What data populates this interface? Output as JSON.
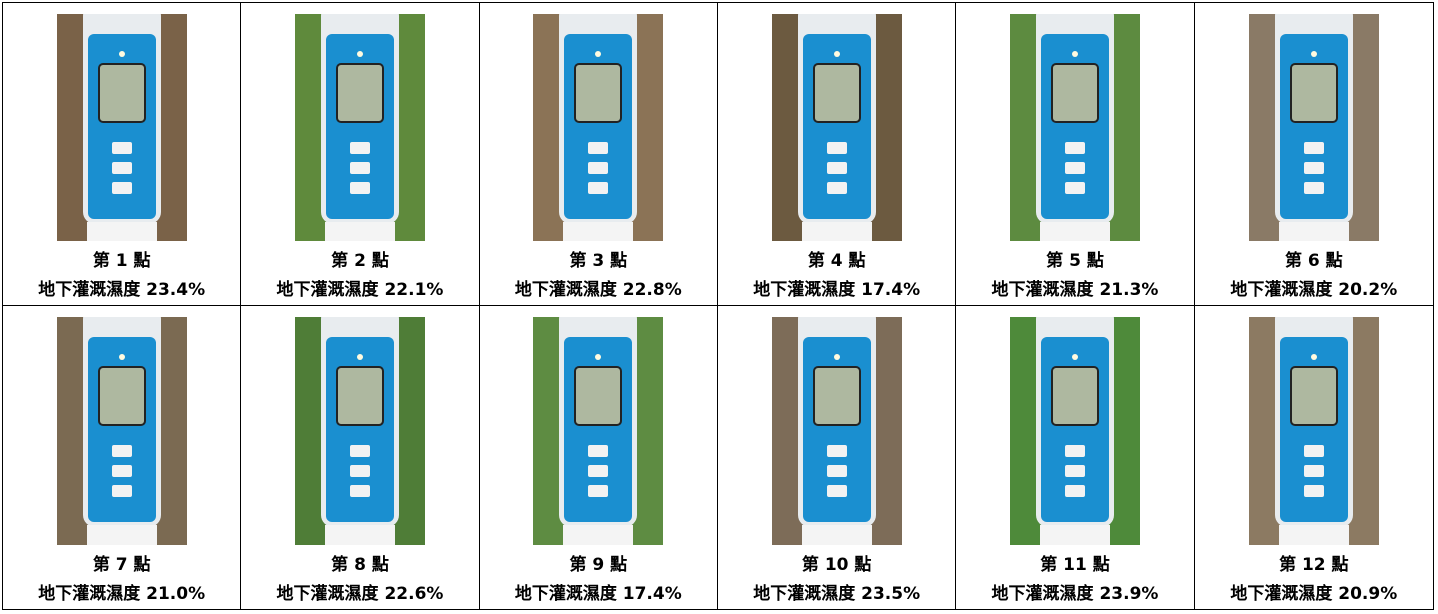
{
  "cells": [
    {
      "label": "第 1 點",
      "caption": "地下灌溉濕度 23.4%"
    },
    {
      "label": "第 2 點",
      "caption": "地下灌溉濕度 22.1%"
    },
    {
      "label": "第 3 點",
      "caption": "地下灌溉濕度 22.8%"
    },
    {
      "label": "第 4 點",
      "caption": "地下灌溉濕度 17.4%"
    },
    {
      "label": "第 5 點",
      "caption": "地下灌溉濕度 21.3%"
    },
    {
      "label": "第 6 點",
      "caption": "地下灌溉濕度 20.2%"
    },
    {
      "label": "第 7 點",
      "caption": "地下灌溉濕度 21.0%"
    },
    {
      "label": "第 8 點",
      "caption": "地下灌溉濕度 22.6%"
    },
    {
      "label": "第 9 點",
      "caption": "地下灌溉濕度 17.4%"
    },
    {
      "label": "第 10 點",
      "caption": "地下灌溉濕度 23.5%"
    },
    {
      "label": "第 11 點",
      "caption": "地下灌溉濕度 23.9%"
    },
    {
      "label": "第 12 點",
      "caption": "地下灌溉濕度 20.9%"
    }
  ]
}
